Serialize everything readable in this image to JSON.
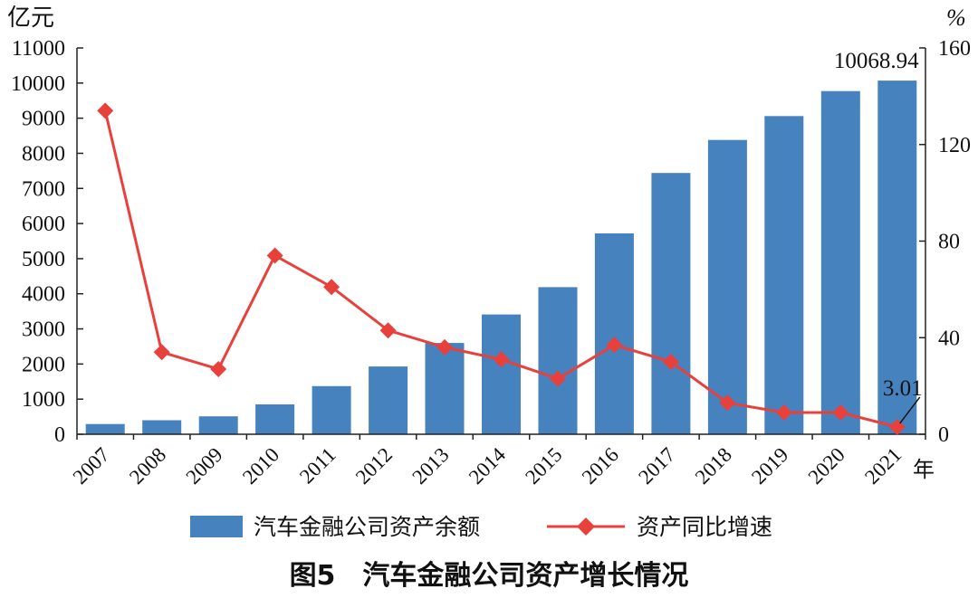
{
  "chart_data": {
    "type": "bar",
    "title": "图5　汽车金融公司资产增长情况",
    "xlabel": "年",
    "ylabel_left": "亿元",
    "ylabel_right": "%",
    "categories": [
      "2007",
      "2008",
      "2009",
      "2010",
      "2011",
      "2012",
      "2013",
      "2014",
      "2015",
      "2016",
      "2017",
      "2018",
      "2019",
      "2020",
      "2021"
    ],
    "ylim_left": [
      0,
      11000
    ],
    "yticks_left": [
      "0",
      "1000",
      "2000",
      "3000",
      "4000",
      "5000",
      "6000",
      "7000",
      "8000",
      "9000",
      "10000",
      "11000"
    ],
    "ylim_right": [
      0,
      160
    ],
    "yticks_right": [
      "0",
      "40",
      "80",
      "120",
      "160"
    ],
    "series": [
      {
        "name": "汽车金融公司资产余额",
        "type": "bar",
        "axis": "left",
        "color": "#4682be",
        "values": [
          290,
          400,
          510,
          850,
          1370,
          1930,
          2600,
          3410,
          4190,
          5720,
          7440,
          8380,
          9060,
          9770,
          10068.94
        ]
      },
      {
        "name": "资产同比增速",
        "type": "line",
        "axis": "right",
        "color": "#e8413c",
        "marker": "diamond",
        "values": [
          134,
          34,
          27,
          74,
          61,
          43,
          36,
          31,
          23,
          37,
          30,
          13,
          9,
          9,
          3.01
        ]
      }
    ],
    "annotations": [
      {
        "text": "10068.94",
        "series": 0,
        "index": 14
      },
      {
        "text": "3.01",
        "series": 1,
        "index": 14
      }
    ],
    "legend": "bottom",
    "grid": false
  }
}
